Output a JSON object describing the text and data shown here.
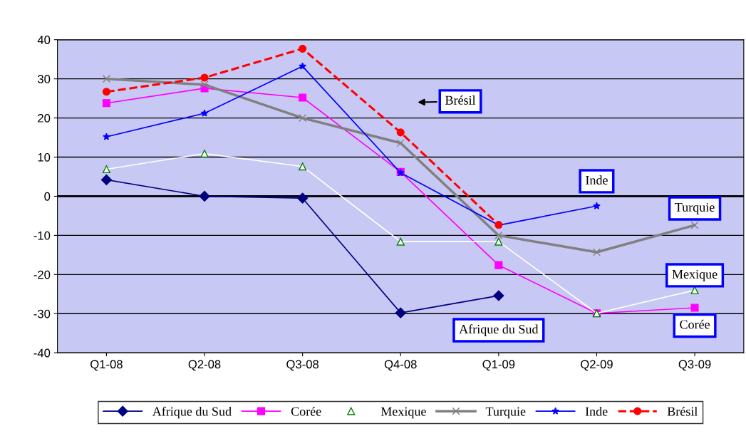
{
  "chart_data": {
    "type": "line",
    "categories": [
      "Q1-08",
      "Q2-08",
      "Q3-08",
      "Q4-08",
      "Q1-09",
      "Q2-09",
      "Q3-09"
    ],
    "series": [
      {
        "name": "Afrique du Sud",
        "color": "#000080",
        "marker": "diamond",
        "values": [
          4.2,
          0,
          -0.5,
          -29.8,
          -25.4,
          null,
          null
        ]
      },
      {
        "name": "Corée",
        "color": "#ff00ff",
        "marker": "square",
        "values": [
          23.8,
          27.6,
          25.2,
          6.2,
          -17.6,
          -29.9,
          -28.5
        ]
      },
      {
        "name": "Mexique",
        "color": "#ffffff",
        "marker": "triangle",
        "values": [
          6.9,
          10.9,
          7.6,
          -11.6,
          -11.6,
          -29.9,
          -24
        ]
      },
      {
        "name": "Turquie",
        "color": "#808080",
        "marker": "cross",
        "values": [
          30,
          28.5,
          20,
          13.6,
          -10,
          -14.3,
          -7.4
        ]
      },
      {
        "name": "Inde",
        "color": "#0000ff",
        "marker": "star",
        "values": [
          15.2,
          21.2,
          33.2,
          6,
          -7.4,
          -2.5,
          null
        ]
      },
      {
        "name": "Brésil",
        "color": "#ff0000",
        "marker": "circle",
        "line_style": "dashed",
        "values": [
          26.7,
          30.3,
          37.7,
          16.3,
          -7.3,
          null,
          null
        ]
      }
    ],
    "ylim": [
      -40,
      40
    ],
    "yticks": [
      -40,
      -30,
      -20,
      -10,
      0,
      10,
      20,
      30,
      40
    ],
    "grid": "y",
    "legend": "bottom",
    "ref_lines": [
      {
        "axis": "y",
        "value": 0,
        "color": "#000000"
      }
    ],
    "annotations": [
      "Brésil",
      {
        "text": "Inde",
        "x": "Q2-09",
        "y": -2.5
      },
      {
        "text": "Turquie",
        "x": "Q3-09",
        "y": -7.4
      },
      {
        "text": "Mexique",
        "x": "Q3-09",
        "y": -24
      },
      {
        "text": "Corée",
        "x": "Q3-09",
        "y": -28.5
      },
      {
        "text": "Afrique du Sud",
        "x": "Q1-09",
        "y": -25.4
      }
    ]
  }
}
